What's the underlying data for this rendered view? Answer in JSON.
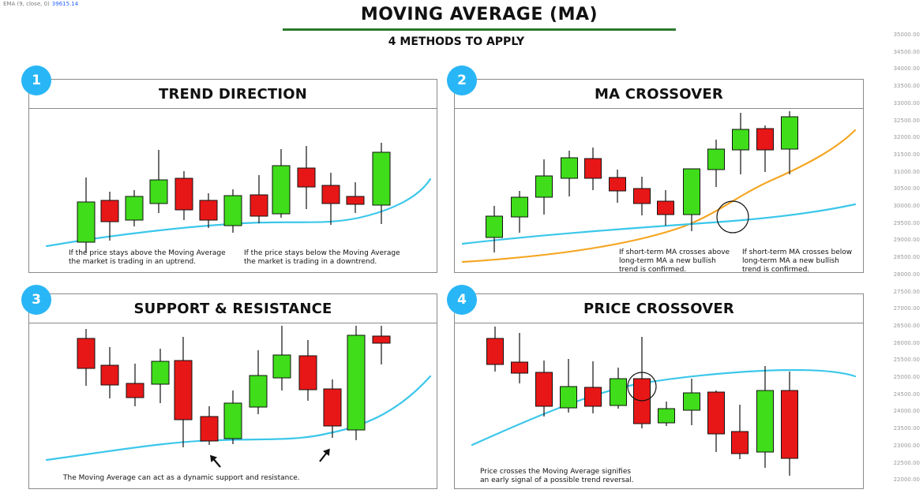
{
  "indicator": {
    "label": "EMA (9, close, 0)",
    "value": "39615.14"
  },
  "price_axis": [
    "35000.00",
    "34500.00",
    "34000.00",
    "33500.00",
    "33000.00",
    "32500.00",
    "32000.00",
    "31500.00",
    "31000.00",
    "30500.00",
    "30000.00",
    "29500.00",
    "29000.00",
    "28500.00",
    "28000.00",
    "27500.00",
    "27000.00",
    "26500.00",
    "26000.00",
    "25500.00",
    "25000.00",
    "24500.00",
    "24000.00",
    "23500.00",
    "23000.00",
    "22500.00",
    "22000.00"
  ],
  "header": {
    "title": "MOVING AVERAGE (MA)",
    "subtitle": "4 METHODS TO APPLY"
  },
  "colors": {
    "bull": "#3fdd1a",
    "bear": "#e81717",
    "ma": "#3cc7ea",
    "ma_long": "#f5a623",
    "badge": "#29b6f6"
  },
  "panels": [
    {
      "number": "1",
      "title": "TREND DIRECTION",
      "notes": [
        "If the price stays above the Moving Average\nthe market is trading in an uptrend.",
        "If the price stays below the Moving Average\nthe market is trading in a downtrend."
      ]
    },
    {
      "number": "2",
      "title": "MA CROSSOVER",
      "notes": [
        "If short-term MA crosses above\nlong-term MA  a new bullish\ntrend is confirmed.",
        "If short-term MA crosses below\nlong-term MA a new bullish\ntrend is confirmed."
      ]
    },
    {
      "number": "3",
      "title": "SUPPORT & RESISTANCE",
      "notes": [
        "The Moving Average can act as a dynamic support and resistance."
      ]
    },
    {
      "number": "4",
      "title": "PRICE CROSSOVER",
      "notes": [
        "Price crosses the Moving Average signifies\nan early signal of a possible trend reversal."
      ]
    }
  ]
}
